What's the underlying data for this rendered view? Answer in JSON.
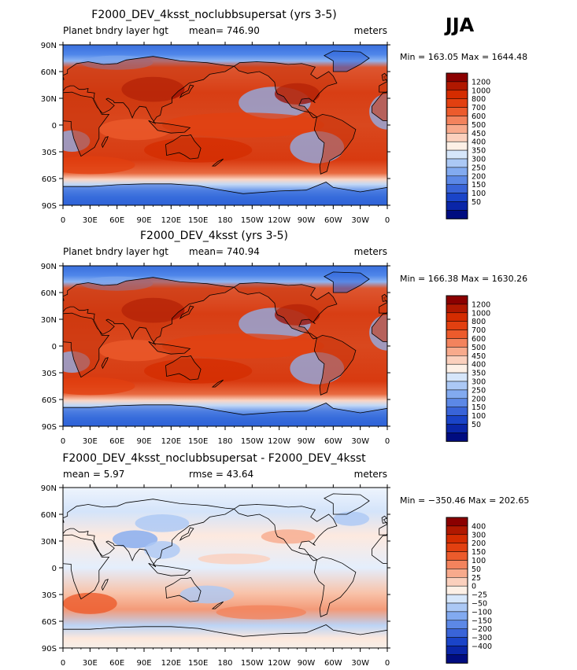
{
  "header": {
    "season": "JJA"
  },
  "colors": {
    "land_outline": "#000000",
    "frame": "#000000"
  },
  "chart_data": [
    {
      "type": "heatmap",
      "title": "F2000_DEV_4ksst_noclubbsupersat (yrs 3-5)",
      "left_label": "Planet bndry layer hgt",
      "center_label": "mean= 746.90",
      "right_label": "meters",
      "minmax_label": "Min = 163.05 Max = 1644.48",
      "min": 163.05,
      "max": 1644.48,
      "mean": 746.9,
      "units": "meters",
      "x_ticks": [
        "0",
        "30E",
        "60E",
        "90E",
        "120E",
        "150E",
        "180",
        "150W",
        "120W",
        "90W",
        "60W",
        "30W",
        "0"
      ],
      "y_ticks": [
        "90N",
        "60N",
        "30N",
        "0",
        "30S",
        "60S",
        "90S"
      ],
      "x_range": [
        0,
        360
      ],
      "y_range": [
        -90,
        90
      ],
      "colorbar": {
        "labels": [
          "1200",
          "1000",
          "800",
          "700",
          "600",
          "500",
          "450",
          "400",
          "350",
          "300",
          "250",
          "200",
          "150",
          "100",
          "50"
        ],
        "colors": [
          "#8b0000",
          "#b01800",
          "#d42c00",
          "#e24010",
          "#ec5b2c",
          "#f3835d",
          "#f8aa8c",
          "#fbd0bd",
          "#fdf0e6",
          "#d6e6fa",
          "#abc8f5",
          "#82aaf0",
          "#5c88e6",
          "#3964d8",
          "#1a44c8",
          "#0a26a8",
          "#000c80"
        ]
      }
    },
    {
      "type": "heatmap",
      "title": "F2000_DEV_4ksst (yrs 3-5)",
      "left_label": "Planet bndry layer hgt",
      "center_label": "mean= 740.94",
      "right_label": "meters",
      "minmax_label": "Min = 166.38 Max = 1630.26",
      "min": 166.38,
      "max": 1630.26,
      "mean": 740.94,
      "units": "meters",
      "x_ticks": [
        "0",
        "30E",
        "60E",
        "90E",
        "120E",
        "150E",
        "180",
        "150W",
        "120W",
        "90W",
        "60W",
        "30W",
        "0"
      ],
      "y_ticks": [
        "90N",
        "60N",
        "30N",
        "0",
        "30S",
        "60S",
        "90S"
      ],
      "x_range": [
        0,
        360
      ],
      "y_range": [
        -90,
        90
      ],
      "colorbar": {
        "labels": [
          "1200",
          "1000",
          "800",
          "700",
          "600",
          "500",
          "450",
          "400",
          "350",
          "300",
          "250",
          "200",
          "150",
          "100",
          "50"
        ],
        "colors": [
          "#8b0000",
          "#b01800",
          "#d42c00",
          "#e24010",
          "#ec5b2c",
          "#f3835d",
          "#f8aa8c",
          "#fbd0bd",
          "#fdf0e6",
          "#d6e6fa",
          "#abc8f5",
          "#82aaf0",
          "#5c88e6",
          "#3964d8",
          "#1a44c8",
          "#0a26a8",
          "#000c80"
        ]
      }
    },
    {
      "type": "heatmap",
      "title": "F2000_DEV_4ksst_noclubbsupersat - F2000_DEV_4ksst",
      "left_label": "mean =     5.97",
      "center_label": "rmse =    43.64",
      "right_label": "meters",
      "minmax_label": "Min = −350.46 Max = 202.65",
      "min": -350.46,
      "max": 202.65,
      "mean": 5.97,
      "rmse": 43.64,
      "units": "meters",
      "x_ticks": [
        "0",
        "30E",
        "60E",
        "90E",
        "120E",
        "150E",
        "180",
        "150W",
        "120W",
        "90W",
        "60W",
        "30W",
        "0"
      ],
      "y_ticks": [
        "90N",
        "60N",
        "30N",
        "0",
        "30S",
        "60S",
        "90S"
      ],
      "x_range": [
        0,
        360
      ],
      "y_range": [
        -90,
        90
      ],
      "colorbar": {
        "labels": [
          "400",
          "300",
          "200",
          "150",
          "100",
          "50",
          "25",
          "0",
          "−25",
          "−50",
          "−100",
          "−150",
          "−200",
          "−300",
          "−400"
        ],
        "colors": [
          "#8b0000",
          "#b01800",
          "#d42c00",
          "#e24010",
          "#ec5b2c",
          "#f3835d",
          "#f8aa8c",
          "#fbd0bd",
          "#fdf0e6",
          "#d6e6fa",
          "#abc8f5",
          "#82aaf0",
          "#5c88e6",
          "#3964d8",
          "#1a44c8",
          "#0a26a8",
          "#000c80"
        ]
      }
    }
  ]
}
